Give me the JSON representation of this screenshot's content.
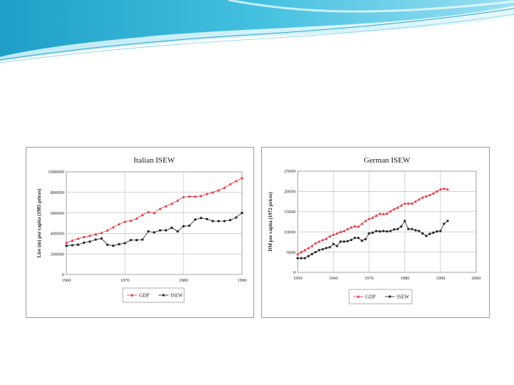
{
  "chart_data": [
    {
      "type": "line",
      "title": "Italian ISEW",
      "ylabel": "Lire (m) per capita (1985 prices)",
      "xlabel": "",
      "xlim": [
        1960,
        1990
      ],
      "ylim": [
        0,
        1000000
      ],
      "xticks": [
        1960,
        1970,
        1980,
        1990
      ],
      "yticks": [
        0,
        200000,
        400000,
        600000,
        800000,
        1000000
      ],
      "grid": true,
      "legend": "bottom",
      "series": [
        {
          "name": "GDP",
          "color": "#e0303a",
          "marker": "triangle",
          "x": [
            1960,
            1961,
            1962,
            1963,
            1964,
            1965,
            1966,
            1967,
            1968,
            1969,
            1970,
            1971,
            1972,
            1973,
            1974,
            1975,
            1976,
            1977,
            1978,
            1979,
            1980,
            1981,
            1982,
            1983,
            1984,
            1985,
            1986,
            1987,
            1988,
            1989,
            1990
          ],
          "y": [
            310000,
            330000,
            350000,
            365000,
            378000,
            390000,
            405000,
            430000,
            460000,
            490000,
            515000,
            525000,
            545000,
            580000,
            610000,
            600000,
            640000,
            665000,
            690000,
            720000,
            755000,
            760000,
            760000,
            765000,
            785000,
            800000,
            820000,
            845000,
            880000,
            910000,
            940000
          ]
        },
        {
          "name": "ISEW",
          "color": "#222222",
          "marker": "square",
          "x": [
            1960,
            1961,
            1962,
            1963,
            1964,
            1965,
            1966,
            1967,
            1968,
            1969,
            1970,
            1971,
            1972,
            1973,
            1974,
            1975,
            1976,
            1977,
            1978,
            1979,
            1980,
            1981,
            1982,
            1983,
            1984,
            1985,
            1986,
            1987,
            1988,
            1989,
            1990
          ],
          "y": [
            280000,
            285000,
            290000,
            310000,
            320000,
            340000,
            350000,
            290000,
            280000,
            295000,
            305000,
            335000,
            335000,
            340000,
            420000,
            410000,
            430000,
            430000,
            455000,
            420000,
            470000,
            475000,
            535000,
            550000,
            540000,
            520000,
            520000,
            520000,
            530000,
            555000,
            600000
          ]
        }
      ]
    },
    {
      "type": "line",
      "title": "German ISEW",
      "ylabel": "DM per capita (1972 prices)",
      "xlabel": "",
      "xlim": [
        1950,
        2000
      ],
      "ylim": [
        0,
        25000
      ],
      "xticks": [
        1950,
        1960,
        1970,
        1980,
        1990,
        2000
      ],
      "yticks": [
        0,
        5000,
        10000,
        15000,
        20000,
        25000
      ],
      "grid": true,
      "legend": "bottom",
      "series": [
        {
          "name": "GDP",
          "color": "#e0303a",
          "marker": "triangle",
          "x": [
            1950,
            1951,
            1952,
            1953,
            1954,
            1955,
            1956,
            1957,
            1958,
            1959,
            1960,
            1961,
            1962,
            1963,
            1964,
            1965,
            1966,
            1967,
            1968,
            1969,
            1970,
            1971,
            1972,
            1973,
            1974,
            1975,
            1976,
            1977,
            1978,
            1979,
            1980,
            1981,
            1982,
            1983,
            1984,
            1985,
            1986,
            1987,
            1988,
            1989,
            1990,
            1991,
            1992
          ],
          "y": [
            4500,
            5000,
            5500,
            6000,
            6500,
            7200,
            7600,
            8000,
            8300,
            8900,
            9300,
            9600,
            10000,
            10200,
            10700,
            11100,
            11400,
            11300,
            12000,
            12700,
            13200,
            13500,
            14000,
            14500,
            14400,
            14500,
            15100,
            15600,
            16000,
            16500,
            17000,
            17000,
            17000,
            17500,
            18000,
            18500,
            18800,
            19100,
            19500,
            20000,
            20500,
            20700,
            20500
          ]
        },
        {
          "name": "ISEW",
          "color": "#222222",
          "marker": "square",
          "x": [
            1950,
            1951,
            1952,
            1953,
            1954,
            1955,
            1956,
            1957,
            1958,
            1959,
            1960,
            1961,
            1962,
            1963,
            1964,
            1965,
            1966,
            1967,
            1968,
            1969,
            1970,
            1971,
            1972,
            1973,
            1974,
            1975,
            1976,
            1977,
            1978,
            1979,
            1980,
            1981,
            1982,
            1983,
            1984,
            1985,
            1986,
            1987,
            1988,
            1989,
            1990,
            1991,
            1992
          ],
          "y": [
            3500,
            3500,
            3500,
            4000,
            4500,
            5000,
            5500,
            5700,
            6000,
            6200,
            7000,
            6500,
            7600,
            7600,
            7700,
            8000,
            8500,
            8500,
            7800,
            8200,
            9600,
            9800,
            10200,
            10100,
            10200,
            10100,
            10200,
            10600,
            10700,
            11300,
            12700,
            10700,
            10700,
            10400,
            10200,
            9600,
            9000,
            9500,
            9800,
            10100,
            10200,
            12000,
            12700
          ]
        }
      ]
    }
  ]
}
